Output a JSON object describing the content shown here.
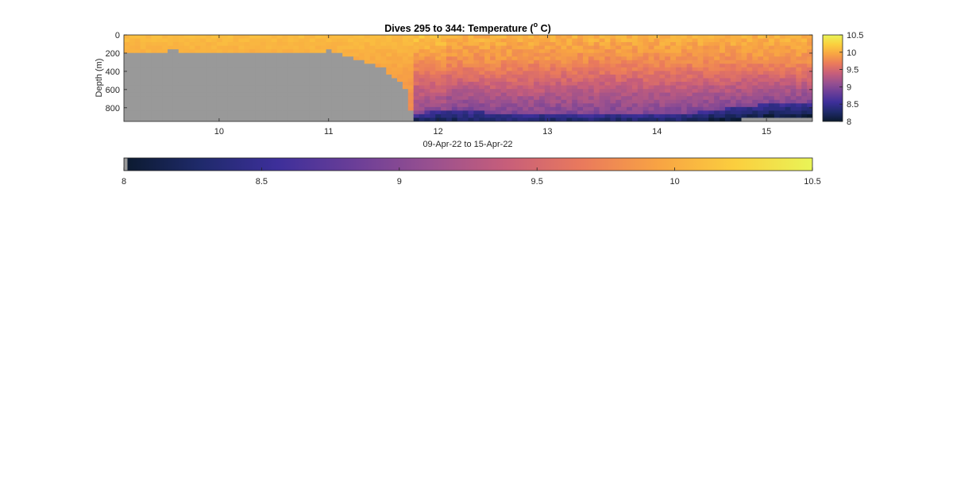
{
  "chart_data": {
    "type": "heatmap",
    "title": "Dives 295 to 344: Temperature (",
    "title_superscript": "o",
    "title_suffix": " C)",
    "xlabel": "09-Apr-22 to 15-Apr-22",
    "ylabel": "Depth (m)",
    "xlim": [
      9.13,
      15.42
    ],
    "ylim": [
      0,
      950
    ],
    "y_reversed": true,
    "x_ticks": [
      10,
      11,
      12,
      13,
      14,
      15
    ],
    "x_tick_labels": [
      "10",
      "11",
      "12",
      "13",
      "14",
      "15"
    ],
    "y_ticks": [
      0,
      200,
      400,
      600,
      800
    ],
    "y_tick_labels": [
      "0",
      "200",
      "400",
      "600",
      "800"
    ],
    "clim": [
      8,
      10.5
    ],
    "colorbar_ticks": [
      8,
      8.5,
      9,
      9.5,
      10,
      10.5
    ],
    "colorbar_tick_labels": [
      "8",
      "8.5",
      "9",
      "9.5",
      "10",
      "10.5"
    ],
    "colormap": [
      "#0b1a2e",
      "#1f2a6b",
      "#3d2f9a",
      "#6a3e98",
      "#985090",
      "#c75e7a",
      "#ea7a5c",
      "#f8a443",
      "#fbcf3e",
      "#e9f457"
    ],
    "nodata_color": "#999999",
    "seafloor_profile": {
      "x": [
        9.13,
        9.25,
        9.35,
        9.5,
        9.6,
        9.75,
        9.9,
        10.0,
        10.2,
        10.4,
        10.55,
        10.7,
        10.8,
        10.9,
        11.0,
        11.1,
        11.2,
        11.3,
        11.4,
        11.5,
        11.6,
        11.7,
        11.78
      ],
      "depth": [
        220,
        190,
        185,
        180,
        170,
        210,
        200,
        185,
        180,
        185,
        190,
        195,
        200,
        210,
        175,
        215,
        250,
        280,
        320,
        370,
        460,
        580,
        990
      ]
    },
    "deep_cold_layer": {
      "x": [
        11.78,
        12.0,
        12.2,
        12.5,
        12.8,
        13.0,
        13.3,
        13.6,
        14.0,
        14.3,
        14.55,
        14.7,
        14.9,
        15.0,
        15.2,
        15.42
      ],
      "cold_top_depth": [
        870,
        820,
        830,
        860,
        880,
        870,
        880,
        875,
        880,
        860,
        820,
        800,
        780,
        760,
        760,
        750
      ],
      "bottom_depth": [
        940,
        950,
        990,
        990,
        990,
        990,
        990,
        990,
        990,
        990,
        930,
        935,
        920,
        910,
        905,
        900
      ]
    },
    "surface_temperature": 10.1,
    "mixed_layer_depth": {
      "x": [
        11.7,
        12.0,
        12.5,
        13.0,
        13.5,
        14.0,
        14.5,
        15.0,
        15.42
      ],
      "depth": [
        200,
        260,
        300,
        280,
        260,
        270,
        280,
        290,
        300
      ]
    }
  }
}
